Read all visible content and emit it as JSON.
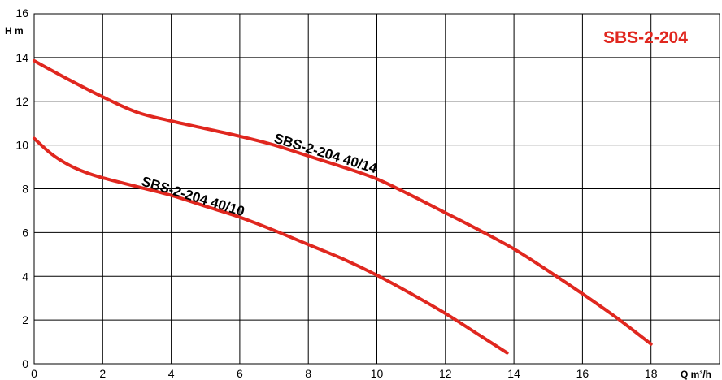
{
  "chart_data": {
    "type": "line",
    "title": "SBS-2-204",
    "xlabel": "Q m³/h",
    "ylabel": "H m",
    "xlim": [
      0,
      20
    ],
    "ylim": [
      0,
      16
    ],
    "x_ticks": [
      "0",
      "2",
      "4",
      "6",
      "8",
      "10",
      "12",
      "14",
      "16",
      "18"
    ],
    "y_ticks": [
      "0",
      "2",
      "4",
      "6",
      "8",
      "10",
      "12",
      "14",
      "16"
    ],
    "grid": true,
    "line_color": "#e0271f",
    "series": [
      {
        "name": "SBS-2-204 40/14",
        "x": [
          0,
          1,
          2,
          3,
          4,
          5,
          6,
          7,
          8,
          9,
          10,
          11,
          12,
          13,
          14,
          15,
          16,
          17,
          18
        ],
        "y": [
          13.85,
          13.0,
          12.2,
          11.5,
          11.1,
          10.75,
          10.4,
          10.0,
          9.5,
          9.0,
          8.45,
          7.7,
          6.9,
          6.1,
          5.25,
          4.25,
          3.2,
          2.1,
          0.9
        ]
      },
      {
        "name": "SBS-2-204 40/10",
        "x": [
          0,
          0.5,
          1,
          1.5,
          2,
          3,
          4,
          5,
          6,
          7,
          8,
          9,
          10,
          11,
          12,
          13,
          13.8
        ],
        "y": [
          10.3,
          9.6,
          9.1,
          8.75,
          8.5,
          8.1,
          7.7,
          7.2,
          6.7,
          6.1,
          5.45,
          4.8,
          4.05,
          3.2,
          2.3,
          1.3,
          0.5
        ]
      }
    ]
  }
}
